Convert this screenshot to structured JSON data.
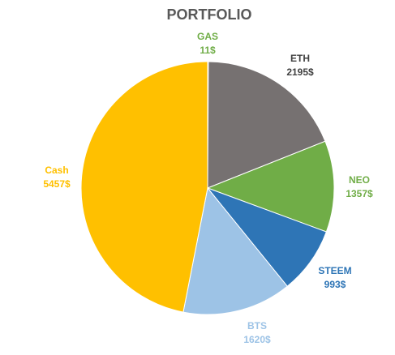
{
  "chart_data": {
    "type": "pie",
    "title": "PORTFOLIO",
    "start_angle_deg": 0,
    "direction": "clockwise",
    "slices": [
      {
        "name": "GAS",
        "value": 11,
        "value_label": "11$",
        "color": "#70AD47"
      },
      {
        "name": "ETH",
        "value": 2195,
        "value_label": "2195$",
        "color": "#767171"
      },
      {
        "name": "NEO",
        "value": 1357,
        "value_label": "1357$",
        "color": "#70AD47"
      },
      {
        "name": "STEEM",
        "value": 993,
        "value_label": "993$",
        "color": "#2E75B6"
      },
      {
        "name": "BTS",
        "value": 1620,
        "value_label": "1620$",
        "color": "#9DC3E6"
      },
      {
        "name": "Cash",
        "value": 5457,
        "value_label": "5457$",
        "color": "#FFC000"
      }
    ],
    "label_colors": {
      "GAS": "#70AD47",
      "ETH": "#404040",
      "NEO": "#70AD47",
      "STEEM": "#2E75B6",
      "BTS": "#9DC3E6",
      "Cash": "#FFC000"
    },
    "legend": "none"
  }
}
